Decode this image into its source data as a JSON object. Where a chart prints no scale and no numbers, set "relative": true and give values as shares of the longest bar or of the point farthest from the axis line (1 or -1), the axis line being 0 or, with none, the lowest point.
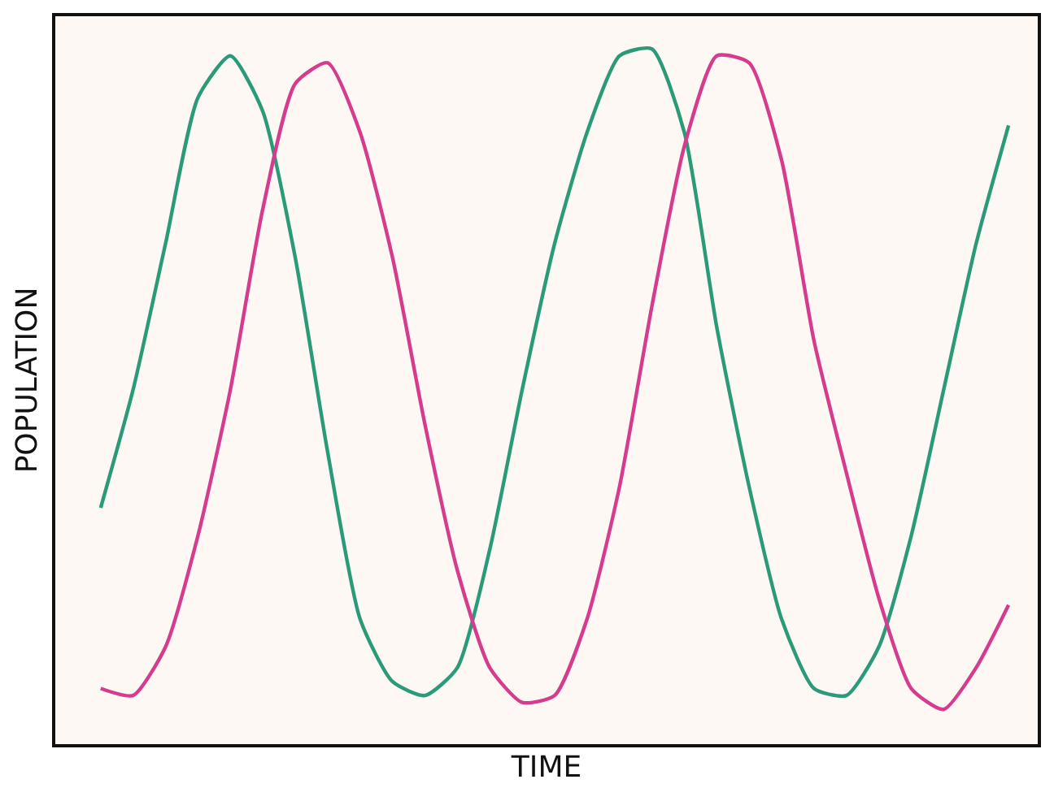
{
  "chart_data": {
    "type": "line",
    "relative": true,
    "xlabel": "TIME",
    "ylabel": "POPULATION",
    "marker": "none",
    "line_style": "solid",
    "categories": [
      null,
      null,
      null,
      null,
      null,
      null,
      null,
      null,
      null,
      null,
      null,
      null,
      null,
      null,
      null,
      null,
      null,
      null,
      null,
      null,
      null,
      null,
      null,
      null,
      null,
      null,
      null,
      null,
      null
    ],
    "series": [
      {
        "color": "#2a9a78",
        "values": [
          0.34,
          0.51,
          0.72,
          0.93,
          0.99,
          0.91,
          0.7,
          0.42,
          0.18,
          0.09,
          0.07,
          0.11,
          0.28,
          0.51,
          0.72,
          0.88,
          0.99,
          1.0,
          0.88,
          0.6,
          0.37,
          0.18,
          0.08,
          0.07,
          0.14,
          0.3,
          0.51,
          0.72,
          0.89
        ]
      },
      {
        "color": "#d63c8e",
        "values": [
          0.08,
          0.07,
          0.14,
          0.3,
          0.51,
          0.77,
          0.95,
          0.98,
          0.88,
          0.7,
          0.46,
          0.25,
          0.11,
          0.06,
          0.07,
          0.18,
          0.37,
          0.63,
          0.86,
          0.99,
          0.98,
          0.84,
          0.58,
          0.39,
          0.21,
          0.08,
          0.05,
          0.11,
          0.2
        ]
      }
    ]
  }
}
